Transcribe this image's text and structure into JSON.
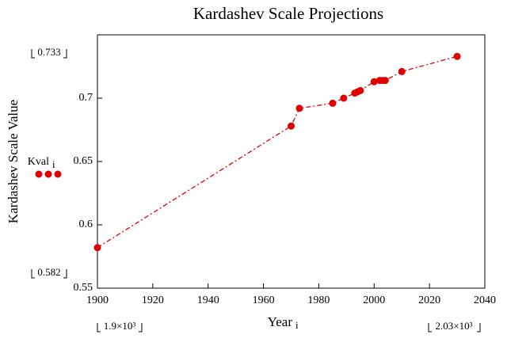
{
  "chart_data": {
    "type": "line",
    "title": "Kardashev Scale Projections",
    "ylabel": "Kardashev Scale Value",
    "xlabel": "Year",
    "xlabel_index": "i",
    "x": [
      1900,
      1970,
      1973,
      1985,
      1989,
      1993,
      1994,
      1995,
      2000,
      2002,
      2003,
      2004,
      2010,
      2030
    ],
    "series": [
      {
        "name": "Kval",
        "index": "i",
        "color": "#e00000",
        "values": [
          0.582,
          0.678,
          0.692,
          0.696,
          0.7,
          0.704,
          0.705,
          0.706,
          0.713,
          0.714,
          0.714,
          0.714,
          0.721,
          0.733
        ]
      }
    ],
    "xlim": [
      1900,
      2040
    ],
    "xticks": [
      1900,
      1920,
      1940,
      1960,
      1980,
      2000,
      2020,
      2040
    ],
    "ylim": [
      0.55,
      0.75
    ],
    "yticks": [
      0.55,
      0.6,
      0.65,
      0.7
    ],
    "y_range_labels": [
      "0.733",
      "0.582"
    ],
    "x_range_labels": [
      "1.9×10³",
      "2.03×10³"
    ]
  }
}
